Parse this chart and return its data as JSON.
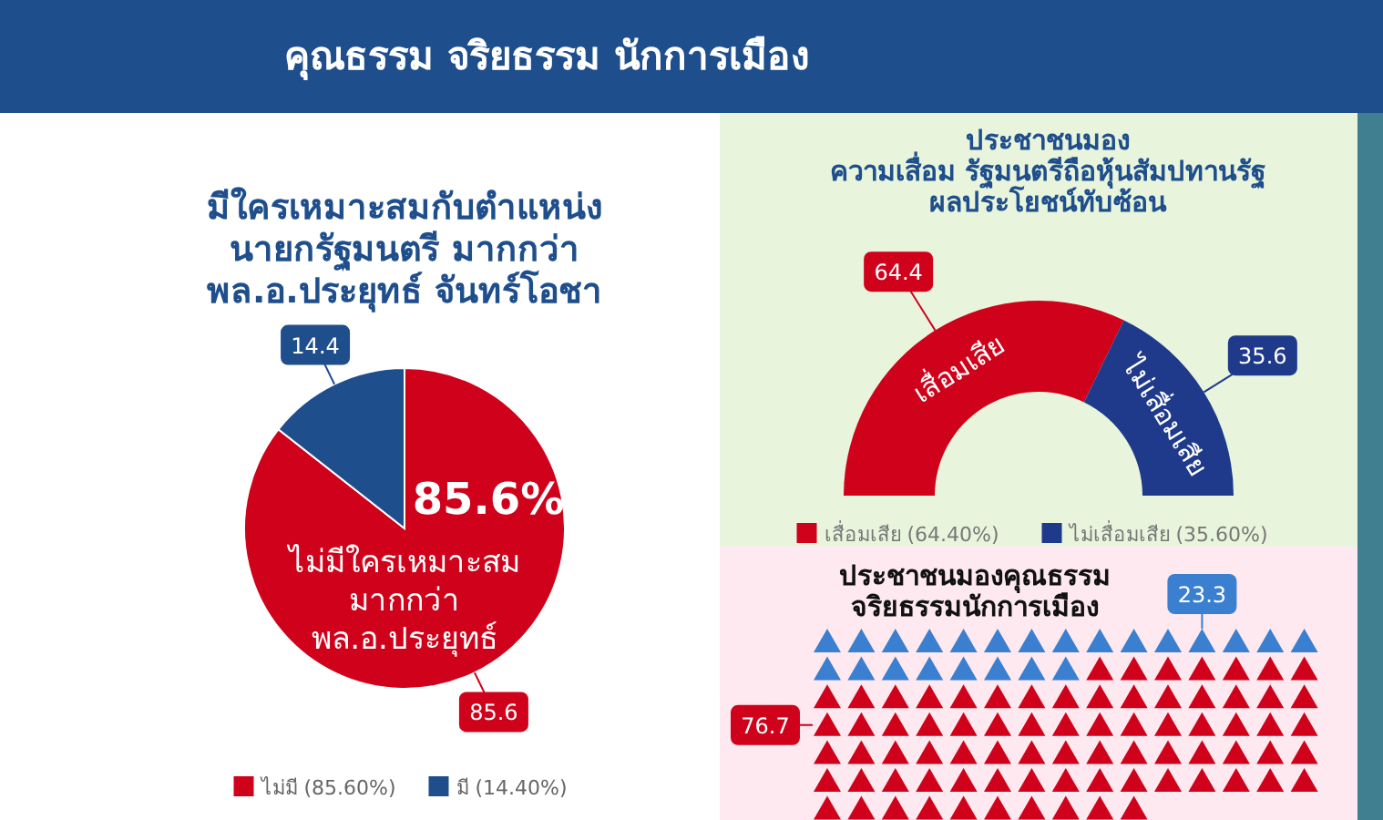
{
  "chart_data": [
    {
      "type": "other",
      "title": "คุณธรรม จริยธรรม นักการเมือง"
    },
    {
      "type": "pie",
      "title": "มีใครเหมาะสมกับตำแหน่ง\nนายกรัฐมนตรี มากกว่า\nพล.อ.ประยุทธ์  จันทร์โอชา",
      "categories": [
        "ไม่มี (85.60%)",
        "มี (14.40%)"
      ],
      "values": [
        85.6,
        14.4
      ],
      "colors": [
        "#d0021b",
        "#1f4e8c"
      ],
      "data_labels": true,
      "legend": "bottom",
      "annotations": [
        "85.6%",
        "ไม่มีใครเหมาะสม\nมากกว่า\nพล.อ.ประยุทธ์"
      ]
    },
    {
      "type": "donut",
      "title": "ประชาชนมอง\nความเสื่อม รัฐมนตรีถือหุ้นสัมปทานรัฐ\nผลประโยชน์ทับซ้อน",
      "categories": [
        "เสื่อมเสีย (64.40%)",
        "ไม่เสื่อมเสีย (35.60%)"
      ],
      "values": [
        64.4,
        35.6
      ],
      "colors": [
        "#d0021b",
        "#1f3a8a"
      ],
      "data_labels": true,
      "legend": "bottom",
      "annotations": [
        "เสื่อมเสีย",
        "ไม่เสื่อมเสีย"
      ]
    },
    {
      "type": "other",
      "title": "ประชาชนมองคุณธรรม\nจริยธรรมนักการเมือง",
      "values": [
        23.3,
        76.7
      ],
      "colors": [
        "#3a7fd0",
        "#d0021b"
      ],
      "data_labels": true
    }
  ]
}
